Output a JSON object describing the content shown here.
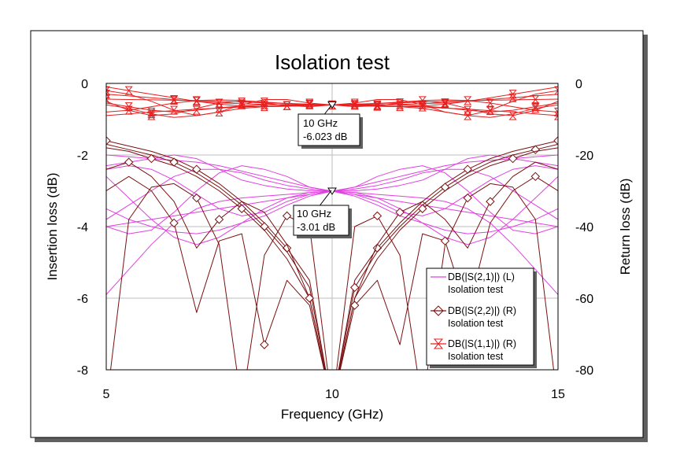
{
  "chart_data": {
    "type": "line",
    "title": "Isolation test",
    "xlabel": "Frequency (GHz)",
    "ylabel": "Insertion loss (dB)",
    "ylabel_right": "Return loss (dB)",
    "xlim": [
      5,
      15
    ],
    "ylim_left": [
      -8,
      0
    ],
    "ylim_right": [
      -80,
      0
    ],
    "x_ticks": [
      "5",
      "10",
      "15"
    ],
    "y_ticks_left": [
      "0",
      "-2",
      "-4",
      "-6",
      "-8"
    ],
    "y_ticks_right": [
      "0",
      "-20",
      "-40",
      "-60",
      "-80"
    ],
    "grid": true,
    "legend_position": "bottom-right",
    "colors": {
      "s21": "#e040e0",
      "s22": "#7a1010",
      "s11": "#e61e1e",
      "plot_bg": "#ffffff",
      "shadow": "#606060"
    },
    "legend": [
      {
        "name": "DB(|S(2,1)|) (L)",
        "sub": "Isolation test",
        "marker": "none"
      },
      {
        "name": "DB(|S(2,2)|) (R)",
        "sub": "Isolation test",
        "marker": "diamond"
      },
      {
        "name": "DB(|S(1,1)|) (R)",
        "sub": "Isolation test",
        "marker": "hourglass"
      }
    ],
    "markers": [
      {
        "x": 10,
        "y": -6.023,
        "axis": "right",
        "line1": "10 GHz",
        "line2": "-6.023 dB"
      },
      {
        "x": 10,
        "y": -3.01,
        "axis": "left",
        "line1": "10 GHz",
        "line2": "-3.01 dB"
      }
    ],
    "series": [
      {
        "group": "S21",
        "axis": "left",
        "x": [
          5,
          5.5,
          6,
          6.5,
          7,
          7.5,
          8,
          8.5,
          9,
          9.5,
          10,
          10.5,
          11,
          11.5,
          12,
          12.5,
          13,
          13.5,
          14,
          14.5,
          15
        ],
        "lines": [
          [
            -5.9,
            -5.2,
            -4.5,
            -3.9,
            -3.5,
            -3.3,
            -3.2,
            -3.15,
            -3.1,
            -3.05,
            -3.01,
            -3.05,
            -3.1,
            -3.15,
            -3.2,
            -3.3,
            -3.5,
            -3.9,
            -4.5,
            -5.2,
            -5.9
          ],
          [
            -2.0,
            -2.05,
            -2.1,
            -2.15,
            -2.2,
            -2.3,
            -2.45,
            -2.6,
            -2.75,
            -2.9,
            -3.01,
            -3.1,
            -3.2,
            -3.3,
            -3.4,
            -3.5,
            -3.6,
            -3.7,
            -3.8,
            -3.9,
            -4.0
          ],
          [
            -4.0,
            -3.9,
            -3.8,
            -3.7,
            -3.6,
            -3.5,
            -3.4,
            -3.3,
            -3.2,
            -3.1,
            -3.01,
            -2.9,
            -2.75,
            -2.6,
            -2.45,
            -2.3,
            -2.2,
            -2.15,
            -2.1,
            -2.05,
            -2.0
          ],
          [
            -2.3,
            -2.2,
            -2.1,
            -2.0,
            -2.1,
            -2.4,
            -2.7,
            -2.85,
            -2.95,
            -3.0,
            -3.01,
            -3.15,
            -3.4,
            -3.7,
            -3.9,
            -4.1,
            -4.2,
            -4.15,
            -4.0,
            -3.8,
            -3.5
          ],
          [
            -3.5,
            -3.8,
            -4.0,
            -4.15,
            -4.2,
            -4.1,
            -3.9,
            -3.7,
            -3.4,
            -3.15,
            -3.01,
            -3.0,
            -2.95,
            -2.85,
            -2.7,
            -2.4,
            -2.1,
            -2.0,
            -2.1,
            -2.2,
            -2.3
          ],
          [
            -2.6,
            -3.2,
            -3.8,
            -4.3,
            -4.5,
            -4.3,
            -3.9,
            -3.5,
            -3.2,
            -3.05,
            -3.01,
            -2.95,
            -2.85,
            -2.7,
            -2.5,
            -2.4,
            -2.4,
            -2.6,
            -3.0,
            -3.4,
            -3.8
          ],
          [
            -3.8,
            -3.4,
            -3.0,
            -2.6,
            -2.4,
            -2.4,
            -2.5,
            -2.7,
            -2.85,
            -2.95,
            -3.01,
            -3.05,
            -3.2,
            -3.5,
            -3.9,
            -4.3,
            -4.5,
            -4.3,
            -3.8,
            -3.2,
            -2.6
          ],
          [
            -2.4,
            -2.3,
            -2.4,
            -2.7,
            -3.1,
            -3.5,
            -3.7,
            -3.6,
            -3.3,
            -3.1,
            -3.01,
            -2.9,
            -2.6,
            -2.4,
            -2.3,
            -2.5,
            -3.0,
            -3.6,
            -4.1,
            -4.2,
            -4.0
          ],
          [
            -4.0,
            -4.2,
            -4.1,
            -3.6,
            -3.0,
            -2.5,
            -2.3,
            -2.4,
            -2.6,
            -2.9,
            -3.01,
            -3.1,
            -3.3,
            -3.6,
            -3.7,
            -3.5,
            -3.1,
            -2.7,
            -2.4,
            -2.3,
            -2.4
          ]
        ]
      },
      {
        "group": "S22",
        "axis": "right",
        "x": [
          5,
          5.5,
          6,
          6.5,
          7,
          7.5,
          8,
          8.5,
          9,
          9.5,
          10,
          10.5,
          11,
          11.5,
          12,
          12.5,
          13,
          13.5,
          14,
          14.5,
          15
        ],
        "lines": [
          [
            -16,
            -17.5,
            -19,
            -21,
            -24,
            -28,
            -33,
            -39,
            -46,
            -55,
            -90,
            -55,
            -46,
            -39,
            -33,
            -28,
            -24,
            -21,
            -19,
            -17.5,
            -16
          ],
          [
            -17,
            -18.5,
            -20,
            -22,
            -25,
            -29,
            -34,
            -40,
            -47,
            -57,
            -90,
            -57,
            -47,
            -40,
            -34,
            -29,
            -25,
            -22,
            -20,
            -18.5,
            -17
          ],
          [
            -18,
            -19,
            -21,
            -23,
            -26,
            -30,
            -35,
            -41,
            -49,
            -60,
            -90,
            -60,
            -49,
            -41,
            -35,
            -30,
            -26,
            -23,
            -21,
            -19,
            -18
          ],
          [
            -24,
            -22,
            -26,
            -33,
            -46,
            -38,
            -33,
            -36,
            -45,
            -60,
            -90,
            -60,
            -45,
            -36,
            -33,
            -38,
            -46,
            -33,
            -26,
            -22,
            -24
          ],
          [
            -90,
            -38,
            -29,
            -28,
            -32,
            -45,
            -90,
            -48,
            -37,
            -40,
            -90,
            -40,
            -37,
            -48,
            -90,
            -45,
            -32,
            -28,
            -29,
            -38,
            -90
          ],
          [
            -30,
            -26,
            -30,
            -39,
            -64,
            -44,
            -42,
            -73,
            -55,
            -62,
            -90,
            -62,
            -55,
            -73,
            -42,
            -44,
            -64,
            -39,
            -30,
            -26,
            -30
          ]
        ]
      },
      {
        "group": "S11",
        "axis": "right",
        "x": [
          5,
          5.5,
          6,
          6.5,
          7,
          7.5,
          8,
          8.5,
          9,
          9.5,
          10,
          10.5,
          11,
          11.5,
          12,
          12.5,
          13,
          13.5,
          14,
          14.5,
          15
        ],
        "lines": [
          [
            -3.0,
            -3.5,
            -4.0,
            -4.5,
            -5.0,
            -5.4,
            -5.7,
            -5.9,
            -6.0,
            -6.0,
            -6.023,
            -6.0,
            -6.0,
            -5.9,
            -5.7,
            -5.4,
            -5.0,
            -4.5,
            -4.0,
            -3.5,
            -3.0
          ],
          [
            -9.0,
            -8.5,
            -8.0,
            -7.6,
            -7.2,
            -6.9,
            -6.6,
            -6.4,
            -6.2,
            -6.1,
            -6.023,
            -6.1,
            -6.2,
            -6.4,
            -6.6,
            -6.9,
            -7.2,
            -7.6,
            -8.0,
            -8.5,
            -9.0
          ],
          [
            -1.0,
            -2.0,
            -3.0,
            -4.0,
            -5.0,
            -5.8,
            -6.3,
            -6.5,
            -6.4,
            -6.2,
            -6.023,
            -5.8,
            -5.6,
            -5.4,
            -5.2,
            -5.0,
            -4.8,
            -4.7,
            -4.6,
            -4.5,
            -4.4
          ],
          [
            -4.4,
            -4.5,
            -4.6,
            -4.7,
            -4.8,
            -5.0,
            -5.2,
            -5.4,
            -5.6,
            -5.8,
            -6.023,
            -6.2,
            -6.4,
            -6.5,
            -6.3,
            -5.8,
            -5.0,
            -4.0,
            -3.0,
            -2.0,
            -1.0
          ],
          [
            -6.0,
            -7.0,
            -8.5,
            -9.5,
            -9.0,
            -8.0,
            -7.0,
            -6.5,
            -6.2,
            -6.1,
            -6.023,
            -5.9,
            -5.6,
            -5.2,
            -4.8,
            -4.6,
            -4.8,
            -5.5,
            -6.5,
            -7.5,
            -8.0
          ],
          [
            -8.0,
            -7.5,
            -6.5,
            -5.5,
            -4.8,
            -4.6,
            -4.8,
            -5.2,
            -5.6,
            -5.9,
            -6.023,
            -6.1,
            -6.2,
            -6.5,
            -7.0,
            -8.0,
            -9.0,
            -9.5,
            -8.5,
            -7.0,
            -6.0
          ],
          [
            -2.0,
            -3.0,
            -5.0,
            -7.5,
            -9.0,
            -8.0,
            -6.0,
            -4.5,
            -4.5,
            -5.5,
            -6.023,
            -6.5,
            -6.2,
            -5.5,
            -5.0,
            -5.5,
            -7.0,
            -8.5,
            -9.0,
            -7.5,
            -5.0
          ],
          [
            -5.0,
            -7.5,
            -9.0,
            -8.5,
            -7.0,
            -5.5,
            -5.0,
            -5.5,
            -6.2,
            -6.5,
            -6.023,
            -5.5,
            -4.5,
            -4.5,
            -6.0,
            -8.0,
            -9.0,
            -7.5,
            -5.0,
            -3.0,
            -2.0
          ],
          [
            -5.5,
            -6.5,
            -7.5,
            -8.0,
            -7.5,
            -6.8,
            -6.3,
            -6.0,
            -5.9,
            -6.0,
            -6.023,
            -6.0,
            -5.9,
            -6.0,
            -6.3,
            -6.8,
            -7.5,
            -8.0,
            -7.5,
            -6.5,
            -5.5
          ]
        ]
      }
    ]
  }
}
